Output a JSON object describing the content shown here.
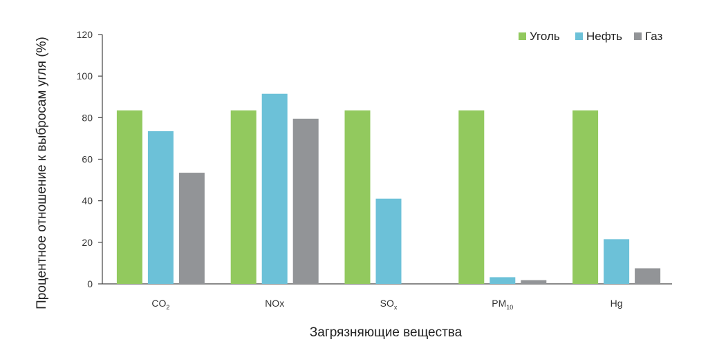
{
  "chart_data": {
    "type": "bar",
    "title": "",
    "xlabel": "Загрязняющие вещества",
    "ylabel": "Процентное отношение к выбросам угля (%)",
    "ylim": [
      0,
      120
    ],
    "yticks": [
      0,
      20,
      40,
      60,
      80,
      100,
      120
    ],
    "grid": false,
    "legend_position": "top-right",
    "categories": [
      {
        "base": "CO",
        "sub": "2"
      },
      {
        "base": "NOx",
        "sub": ""
      },
      {
        "base": "SO",
        "sub": "x"
      },
      {
        "base": "PM",
        "sub": "10"
      },
      {
        "base": "Hg",
        "sub": ""
      }
    ],
    "series": [
      {
        "name": "Уголь",
        "color": "#92c95e",
        "values": [
          83.5,
          83.5,
          83.5,
          83.5,
          83.5
        ]
      },
      {
        "name": "Нефть",
        "color": "#6cc1d8",
        "values": [
          73.5,
          91.5,
          41,
          3.2,
          21.5
        ]
      },
      {
        "name": "Газ",
        "color": "#929497",
        "values": [
          53.5,
          79.5,
          0,
          1.8,
          7.5
        ]
      }
    ]
  }
}
